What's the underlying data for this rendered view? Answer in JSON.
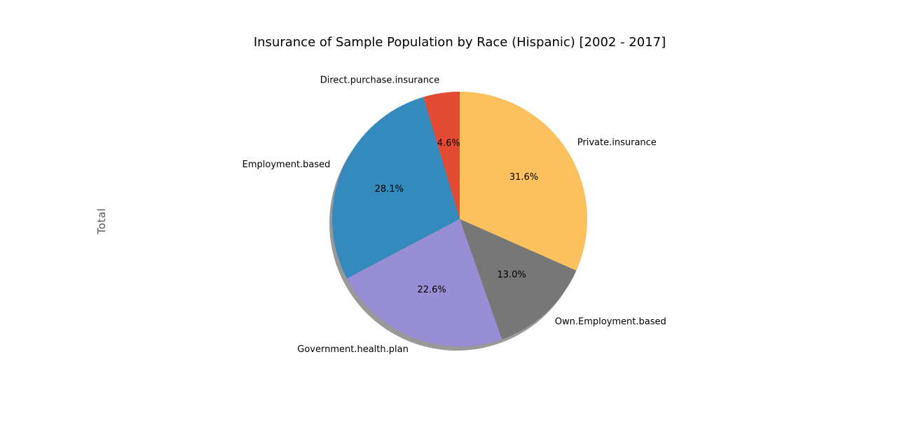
{
  "chart_data": {
    "type": "pie",
    "title": "Insurance of Sample Population by Race (Hispanic) [2002 - 2017]",
    "ylabel": "Total",
    "start_angle_deg": 90,
    "direction": "counterclockwise",
    "shadow": true,
    "slices": [
      {
        "label": "Direct.purchase.insurance",
        "value": 4.6,
        "pct_label": "4.6%",
        "color": "#E24A33"
      },
      {
        "label": "Employment.based",
        "value": 28.1,
        "pct_label": "28.1%",
        "color": "#348ABD"
      },
      {
        "label": "Government.health.plan",
        "value": 22.6,
        "pct_label": "22.6%",
        "color": "#988ED5"
      },
      {
        "label": "Own.Employment.based",
        "value": 13.0,
        "pct_label": "13.0%",
        "color": "#777777"
      },
      {
        "label": "Private.insurance",
        "value": 31.6,
        "pct_label": "31.6%",
        "color": "#FBC15E"
      }
    ]
  }
}
